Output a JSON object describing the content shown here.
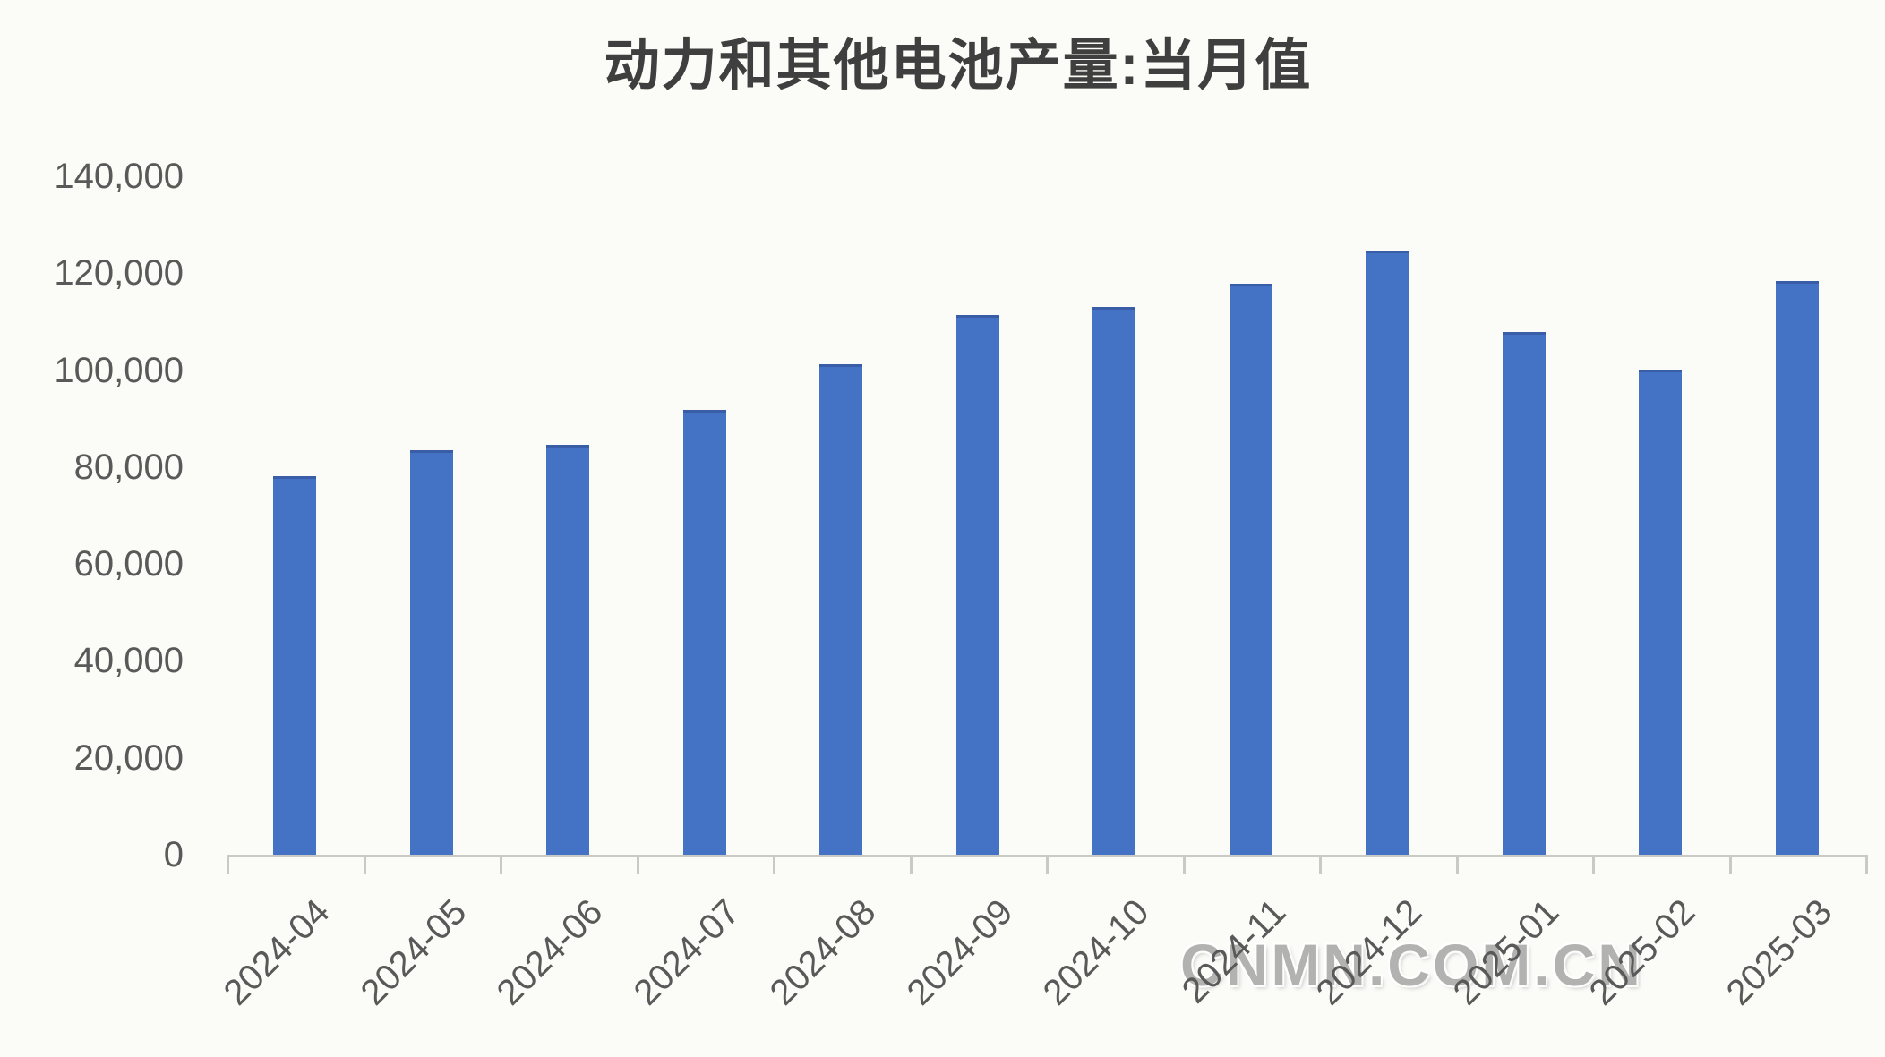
{
  "chart_data": {
    "type": "bar",
    "title": "动力和其他电池产量:当月值",
    "categories": [
      "2024-04",
      "2024-05",
      "2024-06",
      "2024-07",
      "2024-08",
      "2024-09",
      "2024-10",
      "2024-11",
      "2024-12",
      "2025-01",
      "2025-02",
      "2025-03"
    ],
    "values": [
      78200,
      83400,
      84500,
      91800,
      101200,
      111300,
      113100,
      117800,
      124700,
      107900,
      100100,
      118300
    ],
    "xlabel": "",
    "ylabel": "",
    "ylim": [
      0,
      140000
    ],
    "ytick_step": 20000,
    "ytick_labels_top_to_bottom": [
      "140,000",
      "120,000",
      "100,000",
      "80,000",
      "60,000",
      "40,000",
      "20,000",
      "0"
    ],
    "grid": false,
    "legend": false,
    "bar_color": "#4472c4",
    "bar_top_edge_color": "#3a5da8",
    "axis_color": "#c9c9c6",
    "tick_label_color": "#595959",
    "title_color": "#3f3f3f",
    "x_label_rotation_deg": 45
  },
  "watermark": {
    "text": "CNMN.COM.CN",
    "color": "#b2b2b0"
  }
}
